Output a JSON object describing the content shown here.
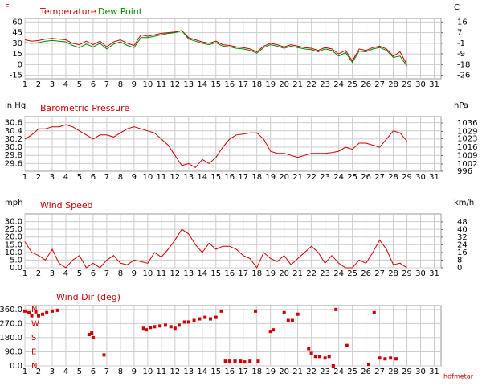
{
  "chart_data": [
    {
      "type": "line",
      "y_label": "F",
      "y2_label": "C",
      "x": [
        1,
        1.5,
        2,
        2.5,
        3,
        3.5,
        4,
        4.5,
        5,
        5.5,
        6,
        6.5,
        7,
        7.5,
        8,
        8.5,
        9,
        9.5,
        10,
        10.5,
        11,
        11.5,
        12,
        12.5,
        13,
        13.5,
        14,
        14.5,
        15,
        15.5,
        16,
        16.5,
        17,
        17.5,
        18,
        18.5,
        19,
        19.5,
        20,
        20.5,
        21,
        21.5,
        22,
        22.5,
        23,
        23.5,
        24,
        24.5,
        25,
        25.5,
        26,
        26.5,
        27,
        27.5,
        28,
        28.5,
        29
      ],
      "series": [
        {
          "name": "Temperature",
          "color": "#cc0000",
          "values": [
            35,
            33,
            34,
            36,
            37,
            36,
            35,
            30,
            28,
            33,
            28,
            33,
            25,
            32,
            35,
            30,
            27,
            42,
            40,
            42,
            44,
            45,
            46,
            48,
            38,
            35,
            32,
            30,
            33,
            28,
            27,
            25,
            24,
            22,
            18,
            26,
            30,
            28,
            25,
            28,
            26,
            24,
            23,
            20,
            24,
            22,
            15,
            20,
            5,
            22,
            20,
            24,
            26,
            22,
            12,
            18,
            0
          ]
        },
        {
          "name": "Dew Point",
          "color": "#008800",
          "values": [
            31,
            30,
            31,
            33,
            34,
            33,
            32,
            27,
            24,
            29,
            25,
            30,
            22,
            29,
            32,
            27,
            24,
            38,
            38,
            40,
            42,
            44,
            45,
            48,
            36,
            33,
            30,
            28,
            31,
            26,
            25,
            23,
            22,
            20,
            16,
            24,
            28,
            26,
            23,
            26,
            24,
            22,
            21,
            18,
            22,
            20,
            12,
            17,
            3,
            19,
            18,
            22,
            24,
            20,
            10,
            12,
            -2
          ]
        }
      ],
      "xlim": [
        1,
        31.5
      ],
      "xticks": [
        1,
        2,
        3,
        4,
        5,
        6,
        7,
        8,
        9,
        10,
        11,
        12,
        13,
        14,
        15,
        16,
        17,
        18,
        19,
        20,
        21,
        22,
        23,
        24,
        25,
        26,
        27,
        28,
        29,
        30,
        31
      ],
      "ylim": [
        -20,
        65
      ],
      "yticks": [
        60,
        45,
        30,
        15,
        0,
        -15
      ],
      "y2lim": [
        -28.9,
        18.3
      ],
      "y2ticks": [
        {
          "value": 15.6,
          "label": "16"
        },
        {
          "value": 7.2,
          "label": "7"
        },
        {
          "value": -1.1,
          "label": "-1"
        },
        {
          "value": -9.4,
          "label": "-9"
        },
        {
          "value": -17.8,
          "label": "-18"
        },
        {
          "value": -26.1,
          "label": "-26"
        }
      ],
      "grid": true
    },
    {
      "type": "line",
      "title": "Barometric Pressure",
      "y_label": "in Hg",
      "y2_label": "hPa",
      "color": "#cc0000",
      "x": [
        1,
        1.5,
        2,
        2.5,
        3,
        3.5,
        4,
        4.5,
        5,
        5.5,
        6,
        6.5,
        7,
        7.5,
        8,
        8.5,
        9,
        9.5,
        10,
        10.5,
        11,
        11.5,
        12,
        12.5,
        13,
        13.5,
        14,
        14.5,
        15,
        15.5,
        16,
        16.5,
        17,
        17.5,
        18,
        18.5,
        19,
        19.5,
        20,
        20.5,
        21,
        21.5,
        22,
        22.5,
        23,
        23.5,
        24,
        24.5,
        25,
        25.5,
        26,
        26.5,
        27,
        27.5,
        28,
        28.5,
        29
      ],
      "values": [
        30.2,
        30.3,
        30.45,
        30.45,
        30.5,
        30.5,
        30.55,
        30.5,
        30.4,
        30.3,
        30.2,
        30.3,
        30.3,
        30.25,
        30.35,
        30.45,
        30.5,
        30.45,
        30.4,
        30.35,
        30.2,
        30.05,
        29.8,
        29.55,
        29.6,
        29.5,
        29.7,
        29.6,
        29.75,
        30.0,
        30.2,
        30.3,
        30.32,
        30.35,
        30.35,
        30.2,
        29.9,
        29.85,
        29.85,
        29.8,
        29.75,
        29.8,
        29.85,
        29.85,
        29.85,
        29.87,
        29.9,
        30.0,
        29.95,
        30.1,
        30.1,
        30.05,
        30.0,
        30.2,
        30.4,
        30.35,
        30.15
      ],
      "xlim": [
        1,
        31.5
      ],
      "xticks": [
        1,
        2,
        3,
        4,
        5,
        6,
        7,
        8,
        9,
        10,
        11,
        12,
        13,
        14,
        15,
        16,
        17,
        18,
        19,
        20,
        21,
        22,
        23,
        24,
        25,
        26,
        27,
        28,
        29,
        30,
        31
      ],
      "ylim": [
        29.41,
        30.75
      ],
      "yticks": [
        30.6,
        30.4,
        30.2,
        {
          "value": 30.0,
          "label": "30.0"
        },
        29.8,
        29.6
      ],
      "y2lim": [
        996,
        1041.3
      ],
      "y2ticks": [
        1036,
        1029,
        1023,
        1016,
        1009,
        1002,
        996
      ],
      "grid": true
    },
    {
      "type": "line",
      "title": "Wind Speed",
      "y_label": "mph",
      "y2_label": "km/h",
      "color": "#cc0000",
      "x": [
        1,
        1.5,
        2,
        2.5,
        3,
        3.5,
        4,
        4.5,
        5,
        5.5,
        6,
        6.5,
        7,
        7.5,
        8,
        8.5,
        9,
        9.5,
        10,
        10.5,
        11,
        11.5,
        12,
        12.5,
        13,
        13.5,
        14,
        14.5,
        15,
        15.5,
        16,
        16.5,
        17,
        17.5,
        18,
        18.5,
        19,
        19.5,
        20,
        20.5,
        21,
        21.5,
        22,
        22.5,
        23,
        23.5,
        24,
        24.5,
        25,
        25.5,
        26,
        26.5,
        27,
        27.5,
        28,
        28.5,
        29
      ],
      "values": [
        17,
        10,
        8,
        5,
        12,
        3,
        0,
        5,
        8,
        0,
        3,
        0,
        5,
        8,
        3,
        2,
        5,
        4,
        3,
        10,
        7,
        12,
        18,
        25,
        22,
        15,
        10,
        16,
        12,
        14,
        14,
        12,
        8,
        6,
        0,
        10,
        6,
        4,
        8,
        2,
        6,
        10,
        14,
        10,
        3,
        8,
        3,
        0,
        0,
        5,
        3,
        10,
        18,
        12,
        2,
        3,
        0
      ],
      "xlim": [
        1,
        31.5
      ],
      "xticks": [
        1,
        2,
        3,
        4,
        5,
        6,
        7,
        8,
        9,
        10,
        11,
        12,
        13,
        14,
        15,
        16,
        17,
        18,
        19,
        20,
        21,
        22,
        23,
        24,
        25,
        26,
        27,
        28,
        29,
        30,
        31
      ],
      "ylim": [
        0,
        35
      ],
      "yticks": [
        {
          "value": 30,
          "label": "30.0"
        },
        {
          "value": 25,
          "label": "25.0"
        },
        {
          "value": 20,
          "label": "20.0"
        },
        {
          "value": 15,
          "label": "15.0"
        },
        {
          "value": 10,
          "label": "10.0"
        },
        {
          "value": 5,
          "label": "5.0"
        },
        {
          "value": 0,
          "label": "0.0"
        }
      ],
      "y2lim": [
        0,
        56.3
      ],
      "y2ticks": [
        48,
        40,
        32,
        24,
        16,
        8,
        0
      ],
      "grid": true
    },
    {
      "type": "scatter",
      "title": "Wind Dir (deg)",
      "color": "#cc0000",
      "x": [
        1,
        1.3,
        1.5,
        1.8,
        2,
        2.3,
        2.6,
        3,
        3.4,
        5.7,
        5.9,
        6,
        6.8,
        9.7,
        9.9,
        10.2,
        10.5,
        10.9,
        11.3,
        11.7,
        12,
        12.3,
        12.7,
        13,
        13.4,
        13.8,
        14.2,
        14.6,
        15,
        15.4,
        15.7,
        16,
        16.4,
        16.8,
        17.1,
        17.5,
        17.9,
        18.1,
        19,
        19.2,
        20,
        20.3,
        20.6,
        21,
        21.8,
        22,
        22.3,
        22.6,
        23,
        23.3,
        23.6,
        23.8,
        24.6,
        26.2,
        26.6,
        27,
        27.4,
        27.8,
        28.2
      ],
      "values": [
        350,
        340,
        320,
        345,
        320,
        330,
        340,
        350,
        355,
        200,
        210,
        180,
        70,
        240,
        230,
        245,
        250,
        255,
        260,
        250,
        240,
        260,
        280,
        280,
        290,
        300,
        310,
        300,
        310,
        350,
        30,
        30,
        30,
        30,
        25,
        30,
        350,
        30,
        220,
        230,
        340,
        290,
        290,
        330,
        110,
        80,
        60,
        60,
        50,
        60,
        0,
        360,
        130,
        10,
        340,
        50,
        45,
        50,
        45
      ],
      "xlim": [
        1,
        31.5
      ],
      "xticks": [
        1,
        2,
        3,
        4,
        5,
        6,
        7,
        8,
        9,
        10,
        11,
        12,
        13,
        14,
        15,
        16,
        17,
        18,
        19,
        20,
        21,
        22,
        23,
        24,
        25,
        26,
        27,
        28,
        29,
        30,
        31
      ],
      "ylim": [
        0,
        385
      ],
      "yticks": [
        {
          "value": 360,
          "label": "360.0"
        },
        {
          "value": 270,
          "label": "270.0"
        },
        {
          "value": 180,
          "label": "180.0"
        },
        {
          "value": 90,
          "label": "90.0"
        },
        {
          "value": 0,
          "label": "0.0"
        }
      ],
      "dir_labels": [
        {
          "value": 360,
          "label": "N"
        },
        {
          "value": 270,
          "label": "W"
        },
        {
          "value": 180,
          "label": "S"
        },
        {
          "value": 90,
          "label": "E"
        },
        {
          "value": 0,
          "label": "N"
        }
      ],
      "grid": true
    }
  ],
  "footer": "hdfmetar"
}
